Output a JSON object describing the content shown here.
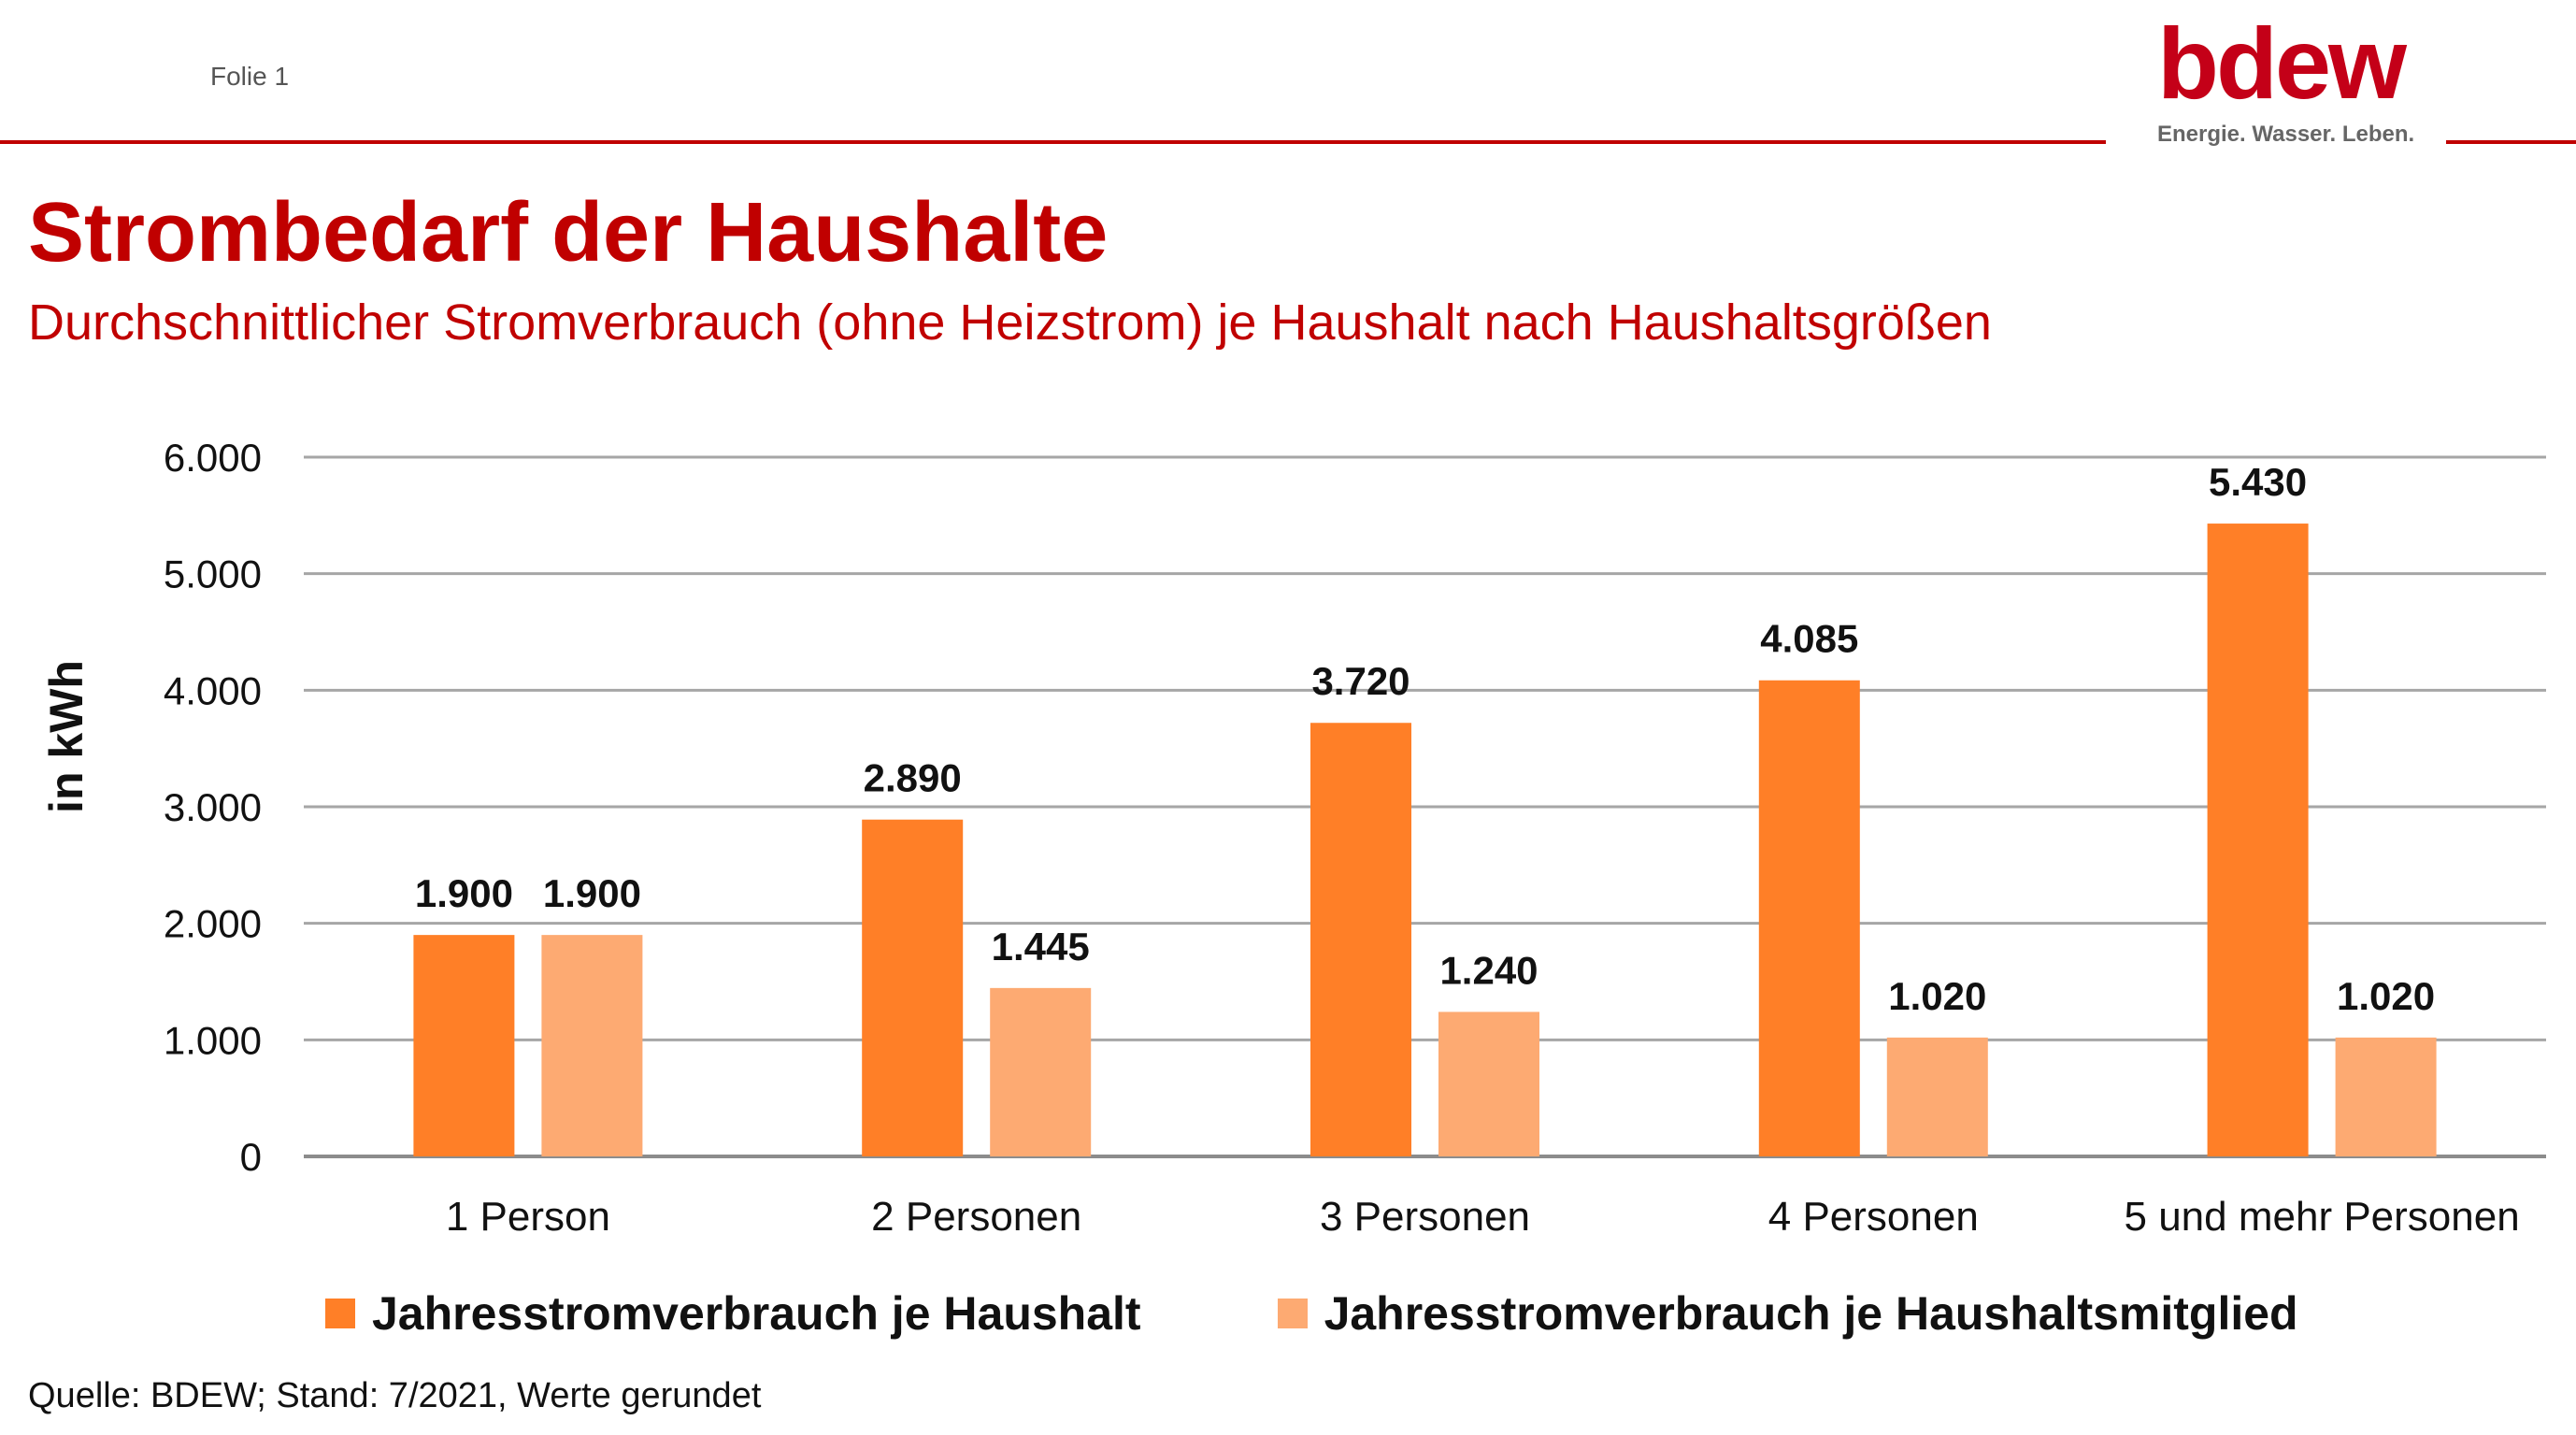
{
  "header": {
    "folie": "Folie  1",
    "logo_text": "bdew",
    "logo_tagline": "Energie. Wasser. Leben.",
    "accent_color": "#c00000"
  },
  "title": "Strombedarf der Haushalte",
  "subtitle": "Durchschnittlicher Stromverbrauch (ohne Heizstrom) je Haushalt nach Haushaltsgrößen",
  "chart_data": {
    "type": "bar",
    "title": "",
    "xlabel": "",
    "ylabel": "in kWh",
    "ylim": [
      0,
      6000
    ],
    "yticks": [
      0,
      1000,
      2000,
      3000,
      4000,
      5000,
      6000
    ],
    "ytick_labels": [
      "0",
      "1.000",
      "2.000",
      "3.000",
      "4.000",
      "5.000",
      "6.000"
    ],
    "grid": true,
    "legend_position": "bottom",
    "categories": [
      "1 Person",
      "2 Personen",
      "3 Personen",
      "4 Personen",
      "5 und mehr Personen"
    ],
    "series": [
      {
        "name": "Jahresstromverbrauch je Haushalt",
        "color": "#ff7f27",
        "values": [
          1900,
          2890,
          3720,
          4085,
          5430
        ],
        "labels": [
          "1.900",
          "2.890",
          "3.720",
          "4.085",
          "5.430"
        ]
      },
      {
        "name": "Jahresstromverbrauch je Haushaltsmitglied",
        "color": "#fdaa72",
        "values": [
          1900,
          1445,
          1240,
          1020,
          1020
        ],
        "labels": [
          "1.900",
          "1.445",
          "1.240",
          "1.020",
          "1.020"
        ]
      }
    ]
  },
  "source": "Quelle: BDEW; Stand: 7/2021, Werte gerundet"
}
